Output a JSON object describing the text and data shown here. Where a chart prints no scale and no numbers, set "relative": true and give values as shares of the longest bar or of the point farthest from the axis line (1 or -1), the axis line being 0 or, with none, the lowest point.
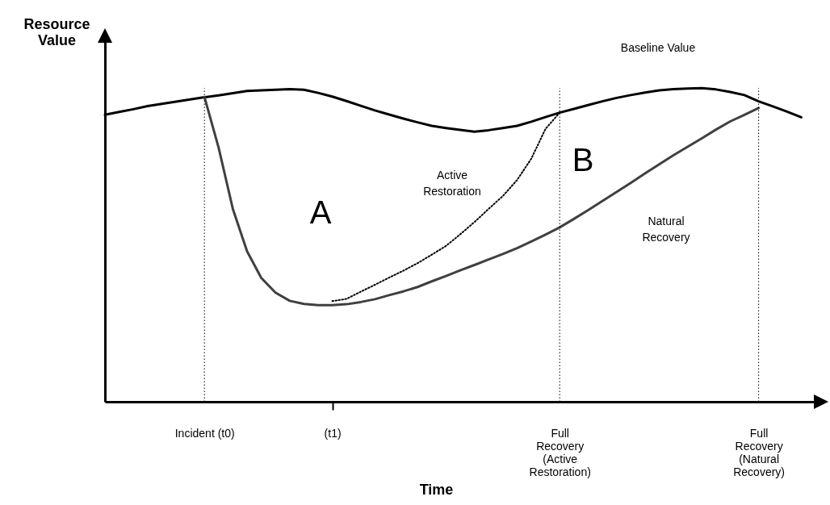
{
  "chart_data": {
    "type": "line",
    "relative": true,
    "xlabel": "Time",
    "ylabel": "Resource Value",
    "categories": [
      null,
      null,
      null,
      null,
      null,
      null,
      null,
      "Incident (t0)",
      null,
      null,
      null,
      null,
      null,
      null,
      null,
      null,
      "(t1)",
      null,
      null,
      null,
      null,
      null,
      null,
      null,
      null,
      null,
      null,
      null,
      null,
      null,
      null,
      null,
      "Full Recovery (Active Restoration)",
      null,
      null,
      null,
      null,
      null,
      null,
      null,
      null,
      null,
      null,
      null,
      null,
      null,
      "Full Recovery (Natural Recovery)",
      null,
      null,
      null,
      null
    ],
    "tick_labels": "x",
    "grid": false,
    "marker": "none",
    "series": [
      {
        "color": "#000000",
        "line_style": "solid",
        "values": [
          0.915,
          0.924,
          0.933,
          0.943,
          0.95,
          0.957,
          0.964,
          0.971,
          0.977,
          0.984,
          0.991,
          0.993,
          0.995,
          0.997,
          0.995,
          0.985,
          0.973,
          0.959,
          0.944,
          0.929,
          0.916,
          0.903,
          0.891,
          0.88,
          0.873,
          0.867,
          0.861,
          0.866,
          0.873,
          0.88,
          0.893,
          0.908,
          0.922,
          0.934,
          0.946,
          0.958,
          0.969,
          0.978,
          0.986,
          0.993,
          0.997,
          0.999,
          1.0,
          0.996,
          0.988,
          0.978,
          0.958,
          0.942,
          0.925,
          0.907,
          null
        ]
      },
      {
        "color": "#404040",
        "line_style": "solid",
        "values": [
          null,
          null,
          null,
          null,
          null,
          null,
          null,
          0.972,
          0.81,
          0.615,
          0.48,
          0.395,
          0.348,
          0.322,
          0.312,
          0.308,
          0.308,
          0.311,
          0.318,
          0.327,
          0.34,
          0.352,
          0.366,
          0.384,
          0.401,
          0.419,
          0.436,
          0.454,
          0.471,
          0.49,
          0.511,
          0.533,
          0.556,
          0.583,
          0.611,
          0.64,
          0.669,
          0.698,
          0.728,
          0.757,
          0.786,
          0.813,
          0.84,
          0.868,
          0.894,
          0.915,
          0.937,
          null,
          null,
          null,
          null
        ]
      },
      {
        "color": "#000000",
        "line_style": "dotted",
        "values": [
          null,
          null,
          null,
          null,
          null,
          null,
          null,
          null,
          null,
          null,
          null,
          null,
          null,
          null,
          null,
          null,
          0.321,
          0.328,
          0.351,
          0.373,
          0.396,
          0.418,
          0.442,
          0.469,
          0.497,
          0.534,
          0.573,
          0.615,
          0.656,
          0.707,
          0.775,
          0.87,
          0.922,
          null,
          null,
          null,
          null,
          null,
          null,
          null,
          null,
          null,
          null,
          null,
          null,
          null,
          null,
          null,
          null,
          null,
          null
        ]
      }
    ],
    "ref_lines": [
      {
        "axis": "x",
        "value": "Incident (t0)",
        "line_style": "dotted"
      },
      {
        "axis": "x",
        "value": "Full Recovery (Active Restoration)",
        "line_style": "dotted"
      },
      {
        "axis": "x",
        "value": "Full Recovery (Natural Recovery)",
        "line_style": "dotted"
      }
    ],
    "annotations": [
      "A",
      "B",
      "Active Restoration",
      "Natural Recovery",
      "Baseline Value"
    ]
  }
}
